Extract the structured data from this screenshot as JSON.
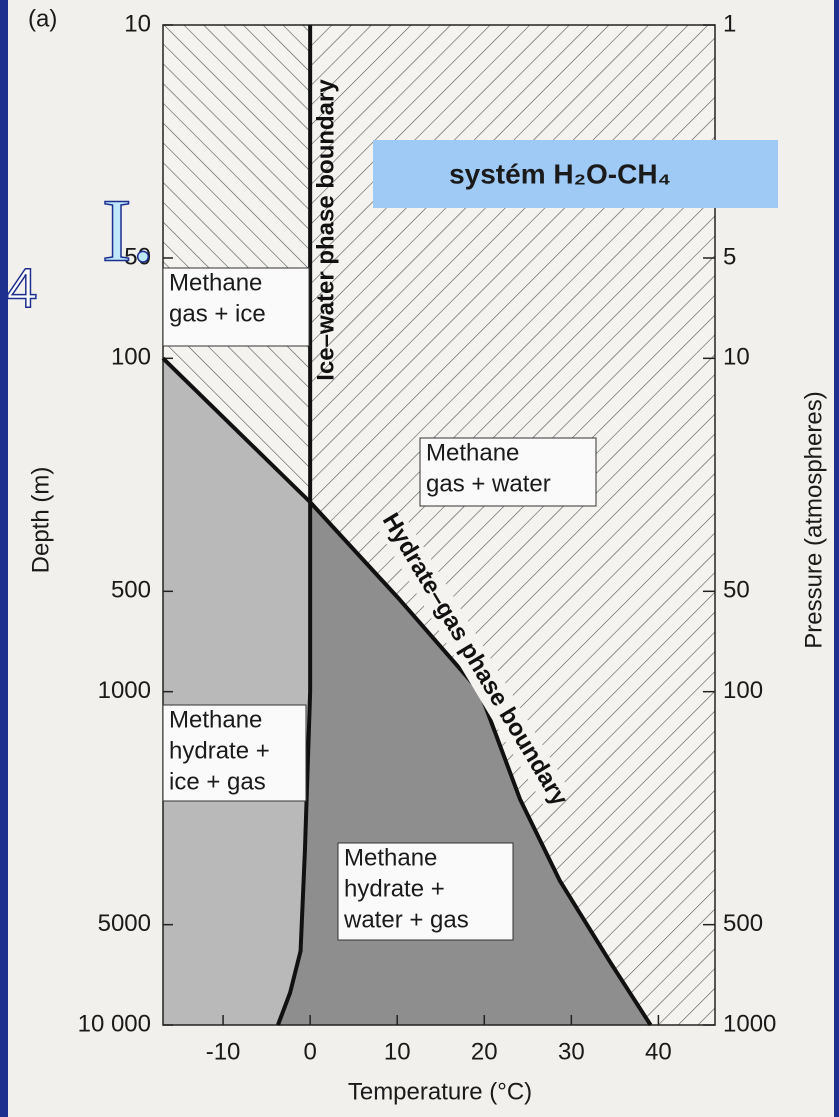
{
  "chart_data": {
    "type": "line",
    "panel": "(a)",
    "x_label": "Temperature (°C)",
    "y_label": "Depth (m)",
    "y2_label": "Pressure (atmospheres)",
    "xlim": [
      -16.9,
      46.5
    ],
    "xticks": [
      -10,
      0,
      10,
      20,
      30,
      40
    ],
    "ylim": [
      10,
      10000
    ],
    "yticks": [
      10,
      50,
      100,
      500,
      1000,
      5000,
      {
        "value": 10000,
        "label": "10 000"
      }
    ],
    "y2lim": [
      1,
      1000
    ],
    "y2ticks": [
      1,
      5,
      10,
      50,
      100,
      500,
      1000
    ],
    "log_scale": true,
    "y_inverted": true,
    "series": [
      {
        "name": "Ice–water phase boundary",
        "color": "#111111",
        "x": [
          0,
          0,
          -0.6,
          -1.1,
          -2.3,
          -3.7
        ],
        "values": [
          10,
          1000,
          3000,
          6000,
          8000,
          10000
        ]
      },
      {
        "name": "Hydrate–gas phase boundary",
        "color": "#111111",
        "x": [
          -16.9,
          0,
          10.3,
          19.5,
          24.1,
          28.7,
          34.5,
          39.1
        ],
        "values": [
          100,
          270,
          530,
          1000,
          2100,
          3700,
          6500,
          10000
        ]
      }
    ],
    "annotations": [
      {
        "lines": [
          "Methane",
          "gas + ice"
        ]
      },
      {
        "lines": [
          "Methane",
          "gas + water"
        ]
      },
      {
        "lines": [
          "Methane",
          "hydrate +",
          "ice + gas"
        ]
      },
      {
        "lines": [
          "Methane",
          "hydrate +",
          "water + gas"
        ]
      }
    ],
    "callout": "systém H₂O-CH₄",
    "slide_marks": [
      "4",
      "I."
    ]
  }
}
